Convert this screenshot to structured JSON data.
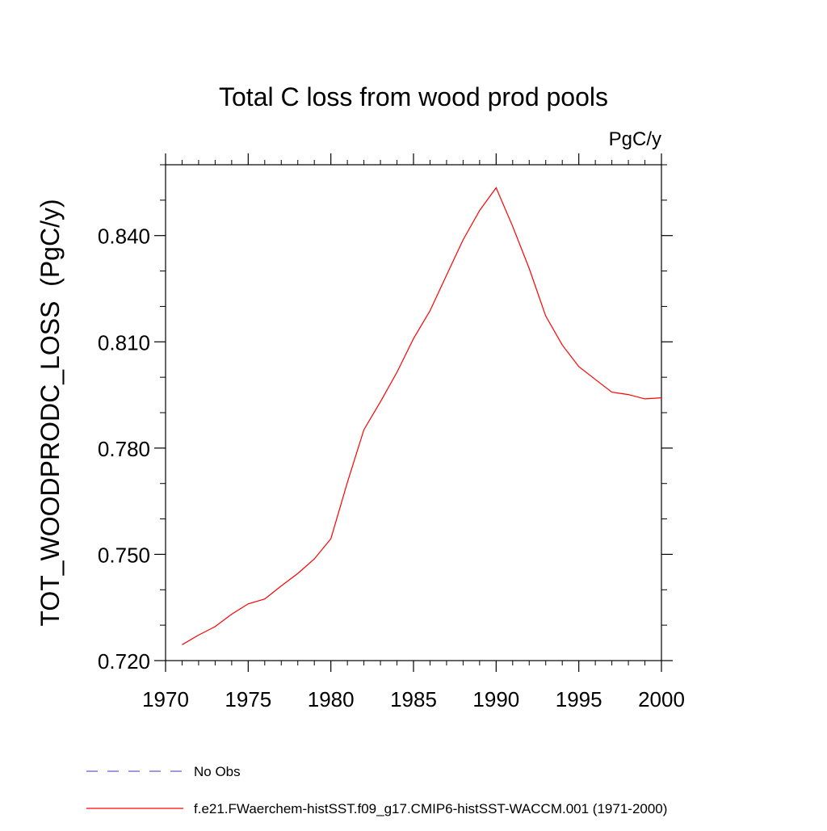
{
  "chart_data": {
    "type": "line",
    "title": "Total C loss from wood prod pools",
    "units_label": "PgC/y",
    "ylabel": "TOT_WOODPRODC_LOSS  (PgC/y)",
    "xlabel": "",
    "xlim": [
      1970,
      2000
    ],
    "ylim": [
      0.72,
      0.86
    ],
    "x_ticks": [
      1970,
      1975,
      1980,
      1985,
      1990,
      1995,
      2000
    ],
    "x_tick_labels": [
      "1970",
      "1975",
      "1980",
      "1985",
      "1990",
      "1995",
      "2000"
    ],
    "y_ticks": [
      0.72,
      0.75,
      0.78,
      0.81,
      0.84
    ],
    "y_tick_labels": [
      "0.720",
      "0.750",
      "0.780",
      "0.810",
      "0.840"
    ],
    "y_minor_step": 0.01,
    "x_minor_step": 1,
    "grid": false,
    "legend_placement": "below",
    "series": [
      {
        "name": "f.e21.FWaerchem-histSST.f09_g17.CMIP6-histSST-WACCM.001 (1971-2000)",
        "color": "#ff0000",
        "dash": "solid",
        "x": [
          1971,
          1972,
          1973,
          1974,
          1975,
          1976,
          1977,
          1978,
          1979,
          1980,
          1981,
          1982,
          1983,
          1984,
          1985,
          1986,
          1987,
          1988,
          1989,
          1990,
          1991,
          1992,
          1993,
          1994,
          1995,
          1996,
          1997,
          1998,
          1999,
          2000
        ],
        "y": [
          0.7245,
          0.7272,
          0.7296,
          0.7331,
          0.736,
          0.7374,
          0.7411,
          0.7446,
          0.7487,
          0.7544,
          0.7703,
          0.7852,
          0.7931,
          0.8014,
          0.8109,
          0.8188,
          0.8288,
          0.8388,
          0.8471,
          0.8535,
          0.8426,
          0.8307,
          0.8173,
          0.8091,
          0.803,
          0.7994,
          0.7958,
          0.7951,
          0.7939,
          0.7942
        ]
      }
    ],
    "legend": [
      {
        "label": "No Obs",
        "color": "#6a5acd",
        "dash": "dashed"
      },
      {
        "label": "f.e21.FWaerchem-histSST.f09_g17.CMIP6-histSST-WACCM.001 (1971-2000)",
        "color": "#ff0000",
        "dash": "solid"
      }
    ]
  }
}
